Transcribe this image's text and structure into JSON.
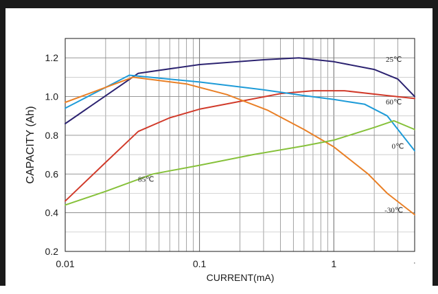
{
  "chart_data": {
    "type": "line",
    "xlabel": "CURRENT(mA)",
    "ylabel": "CAPACITY (Ah)",
    "xscale": "log",
    "xlim": [
      0.01,
      4
    ],
    "ylim": [
      0.2,
      1.3
    ],
    "x_tick_labels": [
      "0.01",
      "0.1",
      "1"
    ],
    "y_tick_labels": [
      "0.2",
      "0.4",
      "0.6",
      "0.8",
      "1.0",
      "1.2"
    ],
    "grid": true,
    "legend": "none",
    "series": [
      {
        "name": "25℃",
        "color": "#2b2270",
        "label_at": [
          2.8,
          1.18
        ],
        "points": [
          [
            0.01,
            0.86
          ],
          [
            0.035,
            1.12
          ],
          [
            0.1,
            1.165
          ],
          [
            0.3,
            1.19
          ],
          [
            0.55,
            1.2
          ],
          [
            1.0,
            1.18
          ],
          [
            2.0,
            1.14
          ],
          [
            3.0,
            1.09
          ],
          [
            4.0,
            1.0
          ]
        ]
      },
      {
        "name": "60℃",
        "color": "#d13a2a",
        "label_at": [
          2.8,
          0.96
        ],
        "points": [
          [
            0.01,
            0.46
          ],
          [
            0.02,
            0.66
          ],
          [
            0.035,
            0.82
          ],
          [
            0.06,
            0.89
          ],
          [
            0.1,
            0.935
          ],
          [
            0.2,
            0.975
          ],
          [
            0.4,
            1.015
          ],
          [
            0.7,
            1.03
          ],
          [
            1.2,
            1.03
          ],
          [
            2.5,
            1.005
          ],
          [
            4.0,
            0.99
          ]
        ]
      },
      {
        "name": "0℃",
        "color": "#1d9bd8",
        "label_at": [
          3.0,
          0.73
        ],
        "points": [
          [
            0.01,
            0.94
          ],
          [
            0.03,
            1.11
          ],
          [
            0.1,
            1.075
          ],
          [
            0.3,
            1.035
          ],
          [
            0.6,
            1.005
          ],
          [
            1.0,
            0.985
          ],
          [
            1.7,
            0.96
          ],
          [
            2.5,
            0.9
          ],
          [
            4.0,
            0.72
          ]
        ]
      },
      {
        "name": "-30℃",
        "color": "#e97f25",
        "label_at": [
          2.8,
          0.4
        ],
        "points": [
          [
            0.01,
            0.97
          ],
          [
            0.032,
            1.1
          ],
          [
            0.08,
            1.065
          ],
          [
            0.16,
            1.01
          ],
          [
            0.32,
            0.93
          ],
          [
            0.6,
            0.83
          ],
          [
            1.0,
            0.74
          ],
          [
            1.8,
            0.6
          ],
          [
            2.5,
            0.5
          ],
          [
            4.0,
            0.39
          ]
        ]
      },
      {
        "name": "85℃",
        "color": "#86c13a",
        "label_at": [
          0.04,
          0.56
        ],
        "points": [
          [
            0.01,
            0.44
          ],
          [
            0.02,
            0.51
          ],
          [
            0.045,
            0.6
          ],
          [
            0.1,
            0.645
          ],
          [
            0.25,
            0.7
          ],
          [
            0.6,
            0.745
          ],
          [
            1.0,
            0.775
          ],
          [
            2.0,
            0.84
          ],
          [
            2.8,
            0.875
          ],
          [
            4.0,
            0.83
          ]
        ]
      }
    ]
  }
}
